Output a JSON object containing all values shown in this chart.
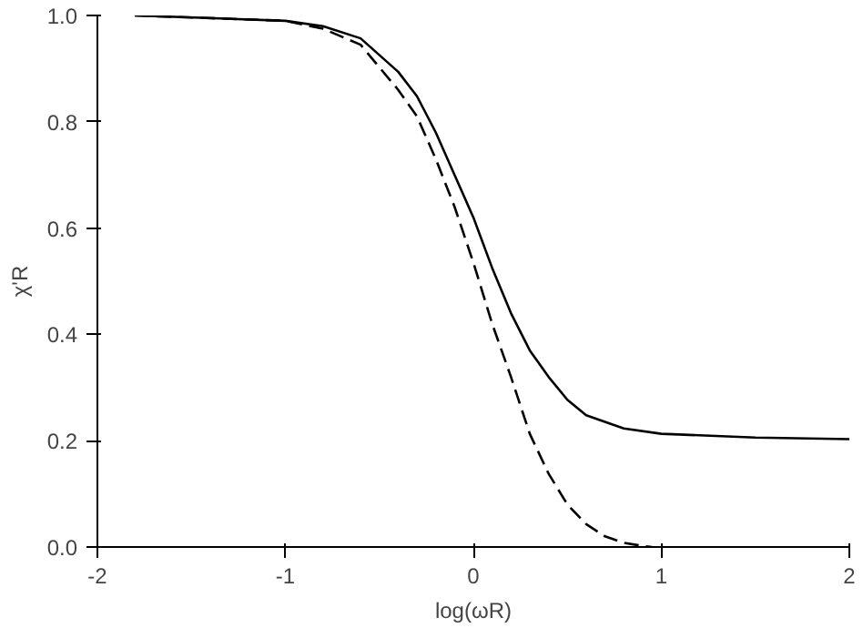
{
  "chart_data": {
    "type": "line",
    "xlabel": "log(ωR)",
    "ylabel": "χ'R",
    "xlim": [
      -2,
      2
    ],
    "ylim": [
      0,
      1
    ],
    "xticks": [
      -2,
      -1,
      0,
      1,
      2
    ],
    "yticks": [
      {
        "value": 0,
        "label": "0.0"
      },
      {
        "value": 0.2,
        "label": "0.2"
      },
      {
        "value": 0.4,
        "label": "0.4"
      },
      {
        "value": 0.6,
        "label": "0.6"
      },
      {
        "value": 0.8,
        "label": "0.8"
      },
      {
        "value": 1,
        "label": "1.0"
      }
    ],
    "grid": false,
    "series": [
      {
        "color": "#000000",
        "line_style": "solid",
        "x": [
          -1.8,
          -1.0,
          -0.8,
          -0.6,
          -0.4,
          -0.3,
          -0.2,
          -0.1,
          0,
          0.1,
          0.2,
          0.3,
          0.4,
          0.5,
          0.6,
          0.8,
          1.0,
          1.5,
          2.0
        ],
        "values": [
          1.0,
          0.99,
          0.98,
          0.957,
          0.894,
          0.848,
          0.78,
          0.7,
          0.62,
          0.525,
          0.44,
          0.37,
          0.32,
          0.277,
          0.248,
          0.223,
          0.213,
          0.206,
          0.203
        ]
      },
      {
        "color": "#000000",
        "line_style": "dashed",
        "x": [
          -1.8,
          -1.0,
          -0.8,
          -0.6,
          -0.4,
          -0.3,
          -0.2,
          -0.1,
          0,
          0.1,
          0.2,
          0.3,
          0.4,
          0.5,
          0.6,
          0.7,
          0.8,
          0.9,
          0.95
        ],
        "values": [
          1.0,
          0.99,
          0.975,
          0.945,
          0.86,
          0.81,
          0.73,
          0.64,
          0.535,
          0.42,
          0.32,
          0.213,
          0.138,
          0.08,
          0.043,
          0.02,
          0.008,
          0.002,
          0.0
        ]
      }
    ]
  }
}
